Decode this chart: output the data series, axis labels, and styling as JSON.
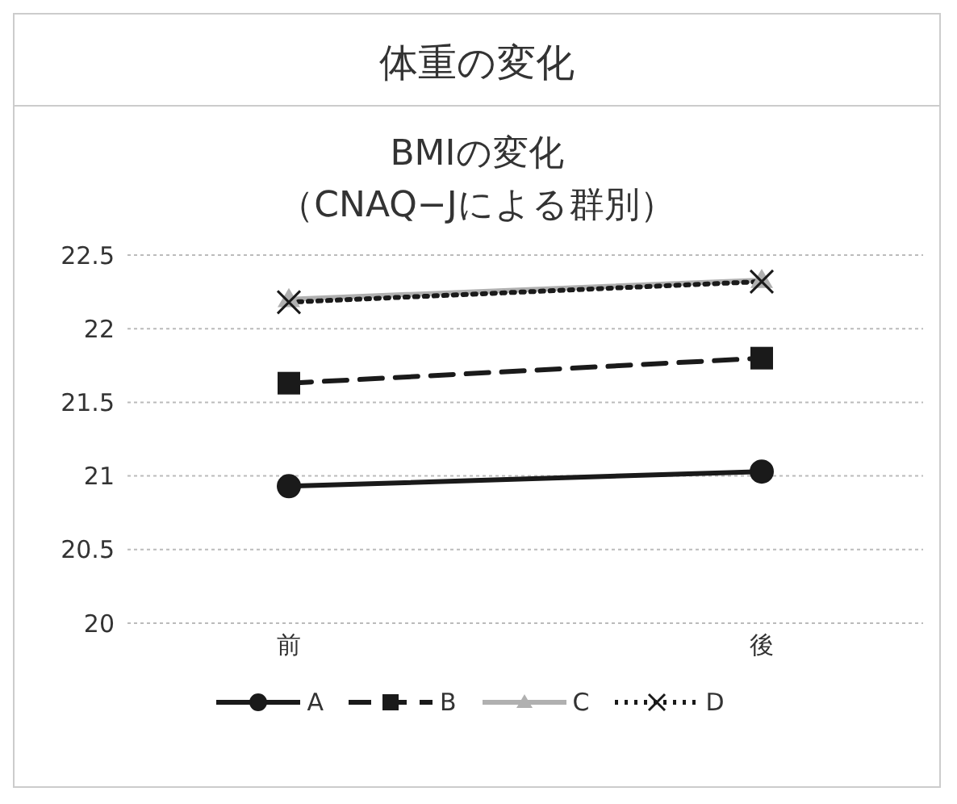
{
  "chart_data": {
    "type": "line",
    "title": "体重の変化",
    "subtitle": "BMIの変化（CNAQ−Jによる群別）",
    "categories": [
      "前",
      "後"
    ],
    "series": [
      {
        "name": "A",
        "color": "#1a1a1a",
        "values": [
          20.93,
          21.03
        ],
        "marker": "circle",
        "line_style": "solid"
      },
      {
        "name": "B",
        "color": "#1a1a1a",
        "values": [
          21.63,
          21.8
        ],
        "marker": "square",
        "line_style": "dashed"
      },
      {
        "name": "C",
        "color": "#b0b0b0",
        "values": [
          22.2,
          22.33
        ],
        "marker": "triangle",
        "line_style": "solid"
      },
      {
        "name": "D",
        "color": "#1a1a1a",
        "values": [
          22.18,
          22.32
        ],
        "marker": "cross",
        "line_style": "dotted"
      }
    ],
    "ylim": [
      20,
      22.5
    ],
    "yticks": [
      20,
      20.5,
      21,
      21.5,
      22,
      22.5
    ],
    "grid": "y",
    "legend": "bottom"
  }
}
